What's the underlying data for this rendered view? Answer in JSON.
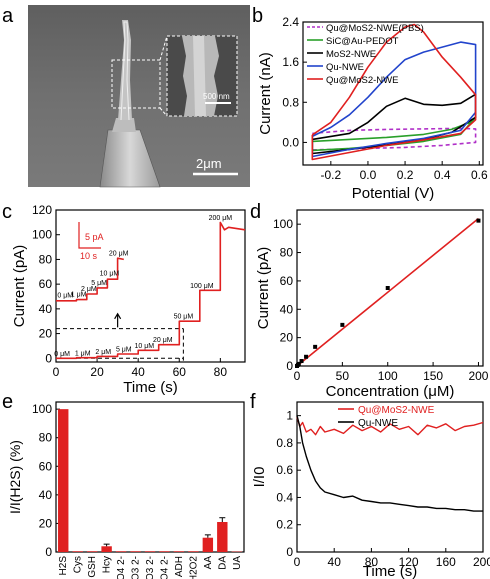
{
  "panel_labels": [
    "a",
    "b",
    "c",
    "d",
    "e",
    "f"
  ],
  "panel_a": {
    "scale_main": "2μm",
    "scale_inset": "500 nm"
  },
  "chart_data": [
    {
      "panel": "b",
      "type": "line",
      "xlabel": "Potential (V)",
      "ylabel": "Current (nA)",
      "xlim": [
        -0.35,
        0.62
      ],
      "ylim": [
        -0.45,
        2.4
      ],
      "xticks": [
        -0.2,
        0.0,
        0.2,
        0.4,
        0.6
      ],
      "xtick_labels": [
        "-0.2",
        "0.0",
        "0.2",
        "0.4",
        "0.6"
      ],
      "yticks": [
        0.0,
        0.8,
        1.6,
        2.4
      ],
      "ytick_labels": [
        "0.0",
        "0.8",
        "1.6",
        "2.4"
      ],
      "legend_position": "top-left",
      "series": [
        {
          "name": "Qu@MoS2-NWE(PBS)",
          "color": "#b030c8",
          "dash": true,
          "x": [
            -0.3,
            -0.1,
            0.1,
            0.3,
            0.5,
            0.58,
            0.58,
            0.4,
            0.2,
            0.0,
            -0.2,
            -0.3,
            -0.3
          ],
          "y": [
            0.18,
            0.24,
            0.26,
            0.27,
            0.28,
            0.27,
            0.0,
            -0.06,
            -0.1,
            -0.12,
            -0.14,
            -0.15,
            0.18
          ]
        },
        {
          "name": "SiC@Au-PEDOT",
          "color": "#2aa02a",
          "dash": false,
          "x": [
            -0.3,
            -0.1,
            0.1,
            0.3,
            0.45,
            0.55,
            0.58,
            0.5,
            0.3,
            0.1,
            -0.1,
            -0.3,
            -0.3
          ],
          "y": [
            0.02,
            0.06,
            0.1,
            0.16,
            0.26,
            0.4,
            0.5,
            0.16,
            0.02,
            -0.06,
            -0.12,
            -0.16,
            0.02
          ]
        },
        {
          "name": "MoS2-NWE",
          "color": "#000000",
          "dash": false,
          "x": [
            -0.3,
            -0.1,
            0.0,
            0.1,
            0.2,
            0.3,
            0.4,
            0.5,
            0.58,
            0.58,
            0.45,
            0.3,
            0.1,
            -0.1,
            -0.3,
            -0.3
          ],
          "y": [
            0.06,
            0.18,
            0.4,
            0.72,
            0.88,
            0.76,
            0.74,
            0.78,
            0.96,
            0.5,
            0.2,
            0.06,
            -0.05,
            -0.14,
            -0.22,
            0.06
          ]
        },
        {
          "name": "Qu-NWE",
          "color": "#2244cc",
          "dash": false,
          "x": [
            -0.3,
            -0.2,
            -0.1,
            0.0,
            0.1,
            0.2,
            0.3,
            0.4,
            0.5,
            0.58,
            0.58,
            0.5,
            0.3,
            0.1,
            -0.1,
            -0.3,
            -0.3
          ],
          "y": [
            0.12,
            0.3,
            0.55,
            0.9,
            1.3,
            1.65,
            1.8,
            1.9,
            2.0,
            1.95,
            0.6,
            0.24,
            0.08,
            -0.02,
            -0.14,
            -0.28,
            0.12
          ]
        },
        {
          "name": "Qu@MoS2-NWE",
          "color": "#e02020",
          "dash": false,
          "x": [
            -0.3,
            -0.2,
            -0.1,
            0.0,
            0.1,
            0.2,
            0.25,
            0.3,
            0.4,
            0.5,
            0.58,
            0.58,
            0.5,
            0.3,
            0.1,
            -0.1,
            -0.3,
            -0.3
          ],
          "y": [
            0.15,
            0.4,
            0.9,
            1.5,
            2.0,
            2.3,
            2.35,
            2.2,
            1.7,
            1.3,
            0.95,
            0.45,
            0.18,
            0.05,
            -0.06,
            -0.2,
            -0.34,
            0.15
          ]
        }
      ]
    },
    {
      "panel": "c",
      "type": "line",
      "xlabel": "Time (s)",
      "ylabel": "Current (pA)",
      "xlim": [
        0,
        92
      ],
      "ylim": [
        -3,
        120
      ],
      "xticks": [
        0,
        20,
        40,
        60,
        80
      ],
      "yticks": [
        0,
        20,
        40,
        60,
        80,
        100,
        120
      ],
      "scale_bar_y": "5 pA",
      "scale_bar_x": "10 s",
      "series": [
        {
          "name": "",
          "color": "#e02020",
          "x": [
            0,
            10,
            10,
            20,
            20,
            30,
            30,
            40,
            40,
            50,
            50,
            60,
            60,
            70,
            70,
            80,
            80,
            82,
            84,
            92
          ],
          "y": [
            0,
            0,
            0.5,
            0.5,
            1.5,
            1.5,
            3.5,
            3.5,
            6.5,
            6.5,
            11,
            11,
            30,
            30,
            55,
            55,
            110,
            104,
            106,
            104
          ]
        },
        {
          "name": "",
          "color": "#e02020",
          "x": [
            0,
            10,
            10,
            15,
            15,
            20,
            20,
            25,
            25,
            30,
            30,
            33
          ],
          "y": [
            46.5,
            46.5,
            47.5,
            47.5,
            52,
            52,
            57,
            57,
            64,
            64,
            81,
            80
          ]
        }
      ],
      "step_labels_main": [
        {
          "text": "0 μM",
          "x": 3,
          "y": 1.8
        },
        {
          "text": "1 μM",
          "x": 13,
          "y": 2.3
        },
        {
          "text": "2 μM",
          "x": 23,
          "y": 3.3
        },
        {
          "text": "5 μM",
          "x": 33,
          "y": 5.3
        },
        {
          "text": "10 μM",
          "x": 43,
          "y": 8.3
        },
        {
          "text": "20 μM",
          "x": 52,
          "y": 13
        },
        {
          "text": "50 μM",
          "x": 62,
          "y": 32
        },
        {
          "text": "100 μM",
          "x": 71,
          "y": 57
        },
        {
          "text": "200 μM",
          "x": 80,
          "y": 112
        }
      ],
      "step_labels_inset": [
        {
          "text": "0 μM",
          "x": 4.5,
          "y": 49
        },
        {
          "text": "1 μM",
          "x": 11,
          "y": 50
        },
        {
          "text": "2 μM",
          "x": 16,
          "y": 54.5
        },
        {
          "text": "5 μM",
          "x": 21,
          "y": 59.5
        },
        {
          "text": "10 μM",
          "x": 26,
          "y": 67
        },
        {
          "text": "20 μM",
          "x": 30.5,
          "y": 83
        }
      ]
    },
    {
      "panel": "d",
      "type": "scatter",
      "xlabel": "Concentration (μM)",
      "ylabel": "Current (pA)",
      "xlim": [
        0,
        205
      ],
      "ylim": [
        0,
        110
      ],
      "xticks": [
        0,
        50,
        100,
        150,
        200
      ],
      "yticks": [
        0,
        20,
        40,
        60,
        80,
        100
      ],
      "points_x": [
        0,
        1,
        2,
        5,
        10,
        20,
        50,
        100,
        200
      ],
      "points_y": [
        0,
        0.8,
        1.5,
        3.5,
        6.5,
        13.5,
        29,
        55,
        102.5
      ],
      "fit_line": {
        "x": [
          0,
          200
        ],
        "y": [
          0,
          104
        ]
      }
    },
    {
      "panel": "e",
      "type": "bar",
      "xlabel": "",
      "ylabel": "I/I(H2S) (%)",
      "ylim": [
        0,
        105
      ],
      "yticks": [
        0,
        20,
        40,
        60,
        80,
        100
      ],
      "color": "#e02020",
      "categories": [
        "H2S",
        "Cys",
        "GSH",
        "Hcy",
        "SO4 2-",
        "SO3 2-",
        "S2O3 2-",
        "S2O4 2-",
        "ADH",
        "H2O2",
        "AA",
        "DA",
        "UA"
      ],
      "values": [
        100,
        0.5,
        0.5,
        4,
        0.5,
        0.5,
        0.5,
        0.5,
        0.5,
        0.5,
        10,
        21,
        0.3
      ],
      "error": [
        0,
        0,
        0,
        1.5,
        0,
        0,
        0,
        0,
        0,
        0,
        2,
        3,
        0
      ]
    },
    {
      "panel": "f",
      "type": "line",
      "xlabel": "Time (s)",
      "ylabel": "I/I0",
      "xlim": [
        0,
        200
      ],
      "ylim": [
        0,
        1.1
      ],
      "xticks": [
        0,
        40,
        80,
        120,
        160,
        200
      ],
      "yticks": [
        0.0,
        0.2,
        0.4,
        0.6,
        0.8,
        1.0
      ],
      "legend_position": "top-center",
      "series": [
        {
          "name": "Qu@MoS2-NWE",
          "color": "#e02020",
          "x": [
            0,
            3,
            6,
            10,
            15,
            20,
            25,
            30,
            40,
            50,
            60,
            70,
            80,
            90,
            100,
            110,
            120,
            130,
            140,
            150,
            160,
            170,
            180,
            190,
            200
          ],
          "y": [
            0.99,
            0.92,
            0.95,
            0.88,
            0.9,
            0.86,
            0.92,
            0.88,
            0.9,
            0.87,
            0.93,
            0.89,
            0.92,
            0.88,
            0.94,
            0.9,
            0.92,
            0.86,
            0.93,
            0.91,
            0.94,
            0.89,
            0.92,
            0.93,
            0.95
          ]
        },
        {
          "name": "Qu-NWE",
          "color": "#000000",
          "x": [
            0,
            3,
            6,
            10,
            15,
            20,
            25,
            30,
            40,
            50,
            60,
            70,
            80,
            90,
            100,
            110,
            120,
            130,
            140,
            150,
            160,
            170,
            180,
            190,
            200
          ],
          "y": [
            1.0,
            0.92,
            0.8,
            0.7,
            0.6,
            0.52,
            0.47,
            0.44,
            0.42,
            0.4,
            0.41,
            0.38,
            0.37,
            0.36,
            0.36,
            0.35,
            0.34,
            0.33,
            0.33,
            0.32,
            0.32,
            0.31,
            0.31,
            0.3,
            0.3
          ]
        }
      ]
    }
  ]
}
